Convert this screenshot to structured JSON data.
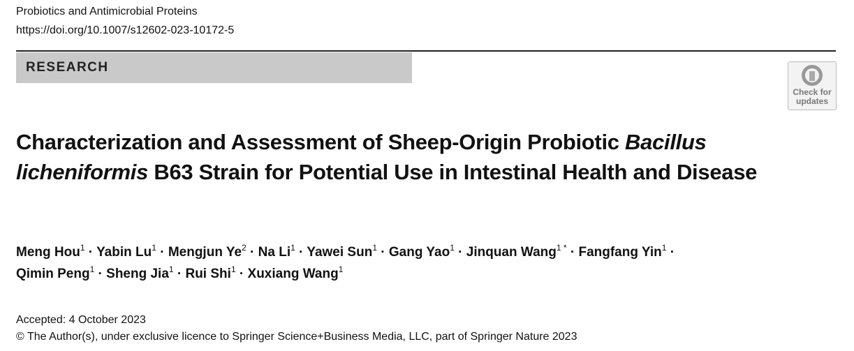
{
  "journal": "Probiotics and Antimicrobial Proteins",
  "doi": "https://doi.org/10.1007/s12602-023-10172-5",
  "section": "RESEARCH",
  "badge": {
    "line1": "Check for",
    "line2": "updates"
  },
  "title": {
    "part1": "Characterization and Assessment of Sheep-Origin Probiotic ",
    "italic": "Bacillus licheniformis",
    "part2": " B63 Strain for Potential Use in Intestinal Health and Disease"
  },
  "authors": [
    {
      "name": "Meng Hou",
      "aff": "1"
    },
    {
      "name": "Yabin Lu",
      "aff": "1"
    },
    {
      "name": "Mengjun Ye",
      "aff": "2"
    },
    {
      "name": "Na Li",
      "aff": "1"
    },
    {
      "name": "Yawei Sun",
      "aff": "1"
    },
    {
      "name": "Gang Yao",
      "aff": "1"
    },
    {
      "name": "Jinquan Wang",
      "aff": "1 *"
    },
    {
      "name": "Fangfang Yin",
      "aff": "1"
    },
    {
      "name": "Qimin Peng",
      "aff": "1"
    },
    {
      "name": "Sheng Jia",
      "aff": "1"
    },
    {
      "name": "Rui Shi",
      "aff": "1"
    },
    {
      "name": "Xuxiang Wang",
      "aff": "1"
    }
  ],
  "accepted": "Accepted: 4 October 2023",
  "copyright": "© The Author(s), under exclusive licence to Springer Science+Business Media, LLC, part of Springer Nature 2023"
}
